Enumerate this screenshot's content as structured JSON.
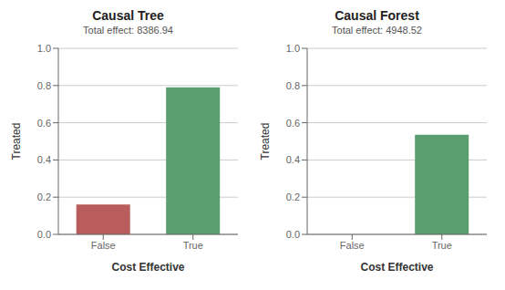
{
  "chart_data": [
    {
      "type": "bar",
      "title": "Causal Tree",
      "subtitle": "Total effect: 8386.94",
      "categories": [
        "False",
        "True"
      ],
      "values": [
        0.16,
        0.79
      ],
      "colors": [
        "#b85c5c",
        "#5a9e6f"
      ],
      "xlabel": "Cost Effective",
      "ylabel": "Treated",
      "ylim": [
        0,
        1
      ],
      "yticks": [
        {
          "value": 0,
          "label": "0.0"
        },
        0.2,
        0.4,
        0.6,
        0.8,
        {
          "value": 1,
          "label": "1.0"
        }
      ],
      "grid": true
    },
    {
      "type": "bar",
      "title": "Causal Forest",
      "subtitle": "Total effect: 4948.52",
      "categories": [
        "False",
        "True"
      ],
      "values": [
        0.0,
        0.535
      ],
      "colors": [
        "#5a9e6f",
        "#5a9e6f"
      ],
      "xlabel": "Cost Effective",
      "ylabel": "Treated",
      "ylim": [
        0,
        1
      ],
      "yticks": [
        {
          "value": 0,
          "label": "0.0"
        },
        0.2,
        0.4,
        0.6,
        0.8,
        {
          "value": 1,
          "label": "1.0"
        }
      ],
      "grid": true
    }
  ]
}
